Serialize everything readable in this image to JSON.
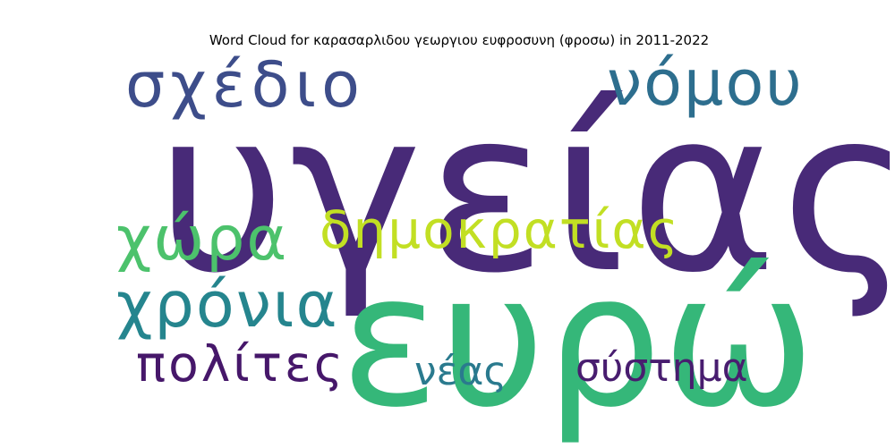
{
  "title": "Word Cloud for καρασαρλιδου γεωργιου ευφροσυνη (φροσω) in 2011-2022",
  "words": [
    {
      "text": "υγείας",
      "color": "#482a78"
    },
    {
      "text": "ευρώ",
      "color": "#35b779"
    },
    {
      "text": "σχέδιο",
      "color": "#3d4d8a"
    },
    {
      "text": "νόμου",
      "color": "#2d6e8e"
    },
    {
      "text": "δημοκρατίας",
      "color": "#c2df23"
    },
    {
      "text": "χώρα",
      "color": "#4cc26c"
    },
    {
      "text": "χρόνια",
      "color": "#25858e"
    },
    {
      "text": "πολίτες",
      "color": "#46176a"
    },
    {
      "text": "νέας",
      "color": "#2a7a8e"
    },
    {
      "text": "σύστημα",
      "color": "#481d6f"
    }
  ]
}
